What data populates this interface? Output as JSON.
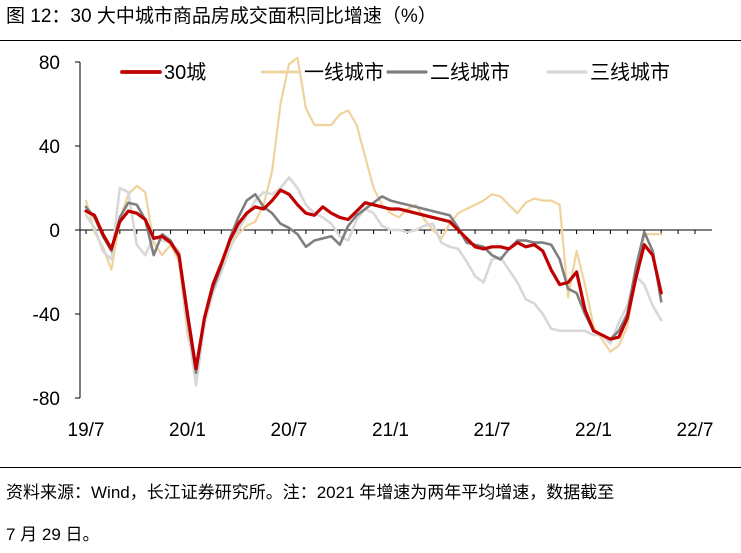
{
  "figure": {
    "title": "图 12：30 大中城市商品房成交面积同比增速（%）",
    "source_line1": "资料来源：Wind，长江证券研究所。注：2021 年增速为两年平均增速，数据截至",
    "source_line2": "7 月 29 日。"
  },
  "chart_data": {
    "type": "line",
    "title": "30 大中城市商品房成交面积同比增速（%）",
    "xlabel": "",
    "ylabel": "",
    "x_unit": "months since 19/7",
    "xlim": [
      0,
      37
    ],
    "ylim": [
      -80,
      80
    ],
    "yticks": [
      80,
      40,
      0,
      -40,
      -80
    ],
    "xticks": [
      {
        "label": "19/7",
        "x": 0
      },
      {
        "label": "20/1",
        "x": 6
      },
      {
        "label": "20/7",
        "x": 12
      },
      {
        "label": "21/1",
        "x": 18
      },
      {
        "label": "21/7",
        "x": 24
      },
      {
        "label": "22/1",
        "x": 30
      },
      {
        "label": "22/7",
        "x": 36
      }
    ],
    "legend_position": "top",
    "series": [
      {
        "name": "30城",
        "color": "#c00000",
        "width": 3.2,
        "points": [
          [
            0,
            9
          ],
          [
            0.5,
            7
          ],
          [
            1,
            -2
          ],
          [
            1.5,
            -9
          ],
          [
            2,
            4
          ],
          [
            2.5,
            9
          ],
          [
            3,
            8
          ],
          [
            3.5,
            5
          ],
          [
            4,
            -4
          ],
          [
            4.5,
            -3
          ],
          [
            5,
            -6
          ],
          [
            5.5,
            -12
          ],
          [
            6,
            -40
          ],
          [
            6.5,
            -66
          ],
          [
            7,
            -42
          ],
          [
            7.5,
            -26
          ],
          [
            8,
            -16
          ],
          [
            8.5,
            -5
          ],
          [
            9,
            3
          ],
          [
            9.5,
            8
          ],
          [
            10,
            11
          ],
          [
            10.5,
            10
          ],
          [
            11,
            14
          ],
          [
            11.5,
            19
          ],
          [
            12,
            17
          ],
          [
            12.5,
            12
          ],
          [
            13,
            8
          ],
          [
            13.5,
            7
          ],
          [
            14,
            11
          ],
          [
            14.5,
            8
          ],
          [
            15,
            6
          ],
          [
            15.5,
            5
          ],
          [
            16,
            9
          ],
          [
            16.5,
            13
          ],
          [
            17,
            12
          ],
          [
            17.5,
            11
          ],
          [
            18,
            10
          ],
          [
            18.5,
            10
          ],
          [
            19,
            9
          ],
          [
            19.5,
            8
          ],
          [
            20,
            7
          ],
          [
            20.5,
            6
          ],
          [
            21,
            5
          ],
          [
            21.5,
            4
          ],
          [
            22,
            0
          ],
          [
            22.5,
            -4
          ],
          [
            23,
            -8
          ],
          [
            23.5,
            -9
          ],
          [
            24,
            -8
          ],
          [
            24.5,
            -8
          ],
          [
            25,
            -9
          ],
          [
            25.5,
            -6
          ],
          [
            26,
            -8
          ],
          [
            26.5,
            -7
          ],
          [
            27,
            -10
          ],
          [
            27.5,
            -19
          ],
          [
            28,
            -26
          ],
          [
            28.5,
            -25
          ],
          [
            29,
            -20
          ],
          [
            29.5,
            -38
          ],
          [
            30,
            -48
          ],
          [
            30.5,
            -50
          ],
          [
            31,
            -52
          ],
          [
            31.5,
            -51
          ],
          [
            32,
            -42
          ],
          [
            32.5,
            -23
          ],
          [
            33,
            -7
          ],
          [
            33.5,
            -12
          ],
          [
            34,
            -30
          ]
        ]
      },
      {
        "name": "一线城市",
        "color": "#f0d39c",
        "width": 2.2,
        "points": [
          [
            0,
            14
          ],
          [
            0.5,
            -1
          ],
          [
            1,
            -8
          ],
          [
            1.5,
            -19
          ],
          [
            2,
            5
          ],
          [
            2.5,
            17
          ],
          [
            3,
            21
          ],
          [
            3.5,
            18
          ],
          [
            4,
            -6
          ],
          [
            4.5,
            -12
          ],
          [
            5,
            -7
          ],
          [
            5.5,
            -15
          ],
          [
            6,
            -50
          ],
          [
            6.5,
            -65
          ],
          [
            7,
            -44
          ],
          [
            7.5,
            -28
          ],
          [
            8,
            -18
          ],
          [
            8.5,
            -8
          ],
          [
            9,
            -2
          ],
          [
            9.5,
            2
          ],
          [
            10,
            4
          ],
          [
            10.5,
            12
          ],
          [
            11,
            28
          ],
          [
            11.5,
            60
          ],
          [
            12,
            79
          ],
          [
            12.5,
            82
          ],
          [
            13,
            58
          ],
          [
            13.5,
            50
          ],
          [
            14,
            50
          ],
          [
            14.5,
            50
          ],
          [
            15,
            55
          ],
          [
            15.5,
            57
          ],
          [
            16,
            50
          ],
          [
            16.5,
            35
          ],
          [
            17,
            20
          ],
          [
            17.5,
            12
          ],
          [
            18,
            8
          ],
          [
            18.5,
            6
          ],
          [
            19,
            10
          ],
          [
            19.5,
            12
          ],
          [
            20,
            5
          ],
          [
            20.5,
            0
          ],
          [
            21,
            -4
          ],
          [
            21.5,
            3
          ],
          [
            22,
            8
          ],
          [
            22.5,
            10
          ],
          [
            23,
            12
          ],
          [
            23.5,
            14
          ],
          [
            24,
            17
          ],
          [
            24.5,
            16
          ],
          [
            25,
            12
          ],
          [
            25.5,
            8
          ],
          [
            26,
            13
          ],
          [
            26.5,
            15
          ],
          [
            27,
            14
          ],
          [
            27.5,
            14
          ],
          [
            28,
            12
          ],
          [
            28.5,
            -32
          ],
          [
            29,
            -10
          ],
          [
            29.5,
            -26
          ],
          [
            30,
            -46
          ],
          [
            30.5,
            -52
          ],
          [
            31,
            -58
          ],
          [
            31.5,
            -55
          ],
          [
            32,
            -46
          ],
          [
            32.5,
            -22
          ],
          [
            33,
            -2
          ],
          [
            33.5,
            -2
          ],
          [
            34,
            -2
          ]
        ]
      },
      {
        "name": "二线城市",
        "color": "#7f7f7f",
        "width": 2.6,
        "points": [
          [
            0,
            11
          ],
          [
            0.5,
            6
          ],
          [
            1,
            -3
          ],
          [
            1.5,
            -10
          ],
          [
            2,
            6
          ],
          [
            2.5,
            13
          ],
          [
            3,
            12
          ],
          [
            3.5,
            5
          ],
          [
            4,
            -12
          ],
          [
            4.5,
            -2
          ],
          [
            5,
            -5
          ],
          [
            5.5,
            -13
          ],
          [
            6,
            -42
          ],
          [
            6.5,
            -68
          ],
          [
            7,
            -42
          ],
          [
            7.5,
            -28
          ],
          [
            8,
            -17
          ],
          [
            8.5,
            -4
          ],
          [
            9,
            6
          ],
          [
            9.5,
            14
          ],
          [
            10,
            17
          ],
          [
            10.5,
            11
          ],
          [
            11,
            8
          ],
          [
            11.5,
            3
          ],
          [
            12,
            1
          ],
          [
            12.5,
            -2
          ],
          [
            13,
            -8
          ],
          [
            13.5,
            -5
          ],
          [
            14,
            -4
          ],
          [
            14.5,
            -3
          ],
          [
            15,
            -7
          ],
          [
            15.5,
            2
          ],
          [
            16,
            7
          ],
          [
            16.5,
            10
          ],
          [
            17,
            13
          ],
          [
            17.5,
            16
          ],
          [
            18,
            14
          ],
          [
            18.5,
            13
          ],
          [
            19,
            12
          ],
          [
            19.5,
            11
          ],
          [
            20,
            10
          ],
          [
            20.5,
            9
          ],
          [
            21,
            8
          ],
          [
            21.5,
            7
          ],
          [
            22,
            1
          ],
          [
            22.5,
            -6
          ],
          [
            23,
            -7
          ],
          [
            23.5,
            -8
          ],
          [
            24,
            -12
          ],
          [
            24.5,
            -14
          ],
          [
            25,
            -9
          ],
          [
            25.5,
            -5
          ],
          [
            26,
            -5
          ],
          [
            26.5,
            -6
          ],
          [
            27,
            -6
          ],
          [
            27.5,
            -7
          ],
          [
            28,
            -14
          ],
          [
            28.5,
            -28
          ],
          [
            29,
            -30
          ],
          [
            29.5,
            -40
          ],
          [
            30,
            -48
          ],
          [
            30.5,
            -50
          ],
          [
            31,
            -52
          ],
          [
            31.5,
            -48
          ],
          [
            32,
            -40
          ],
          [
            32.5,
            -18
          ],
          [
            33,
            -1
          ],
          [
            33.5,
            -10
          ],
          [
            34,
            -34
          ]
        ]
      },
      {
        "name": "三线城市",
        "color": "#d8d8d8",
        "width": 2.6,
        "points": [
          [
            0,
            7
          ],
          [
            0.5,
            1
          ],
          [
            1,
            -10
          ],
          [
            1.5,
            -14
          ],
          [
            2,
            20
          ],
          [
            2.5,
            18
          ],
          [
            3,
            -7
          ],
          [
            3.5,
            -12
          ],
          [
            4,
            -3
          ],
          [
            4.5,
            -5
          ],
          [
            5,
            -6
          ],
          [
            5.5,
            -10
          ],
          [
            6,
            -45
          ],
          [
            6.5,
            -74
          ],
          [
            7,
            -45
          ],
          [
            7.5,
            -30
          ],
          [
            8,
            -20
          ],
          [
            8.5,
            -9
          ],
          [
            9,
            0
          ],
          [
            9.5,
            7
          ],
          [
            10,
            14
          ],
          [
            10.5,
            18
          ],
          [
            11,
            17
          ],
          [
            11.5,
            20
          ],
          [
            12,
            25
          ],
          [
            12.5,
            20
          ],
          [
            13,
            12
          ],
          [
            13.5,
            8
          ],
          [
            14,
            6
          ],
          [
            14.5,
            3
          ],
          [
            15,
            -3
          ],
          [
            15.5,
            -5
          ],
          [
            16,
            5
          ],
          [
            16.5,
            10
          ],
          [
            17,
            8
          ],
          [
            17.5,
            2
          ],
          [
            18,
            0
          ],
          [
            18.5,
            0
          ],
          [
            19,
            -1
          ],
          [
            19.5,
            0
          ],
          [
            20,
            2
          ],
          [
            20.5,
            3
          ],
          [
            21,
            -6
          ],
          [
            21.5,
            -8
          ],
          [
            22,
            -9
          ],
          [
            22.5,
            -15
          ],
          [
            23,
            -22
          ],
          [
            23.5,
            -25
          ],
          [
            24,
            -14
          ],
          [
            24.5,
            -13
          ],
          [
            25,
            -19
          ],
          [
            25.5,
            -25
          ],
          [
            26,
            -33
          ],
          [
            26.5,
            -35
          ],
          [
            27,
            -40
          ],
          [
            27.5,
            -47
          ],
          [
            28,
            -48
          ],
          [
            28.5,
            -48
          ],
          [
            29,
            -48
          ],
          [
            29.5,
            -48
          ],
          [
            30,
            -50
          ],
          [
            30.5,
            -50
          ],
          [
            31,
            -54
          ],
          [
            31.5,
            -44
          ],
          [
            32,
            -36
          ],
          [
            32.5,
            -22
          ],
          [
            33,
            -26
          ],
          [
            33.5,
            -36
          ],
          [
            34,
            -43
          ]
        ]
      }
    ]
  }
}
